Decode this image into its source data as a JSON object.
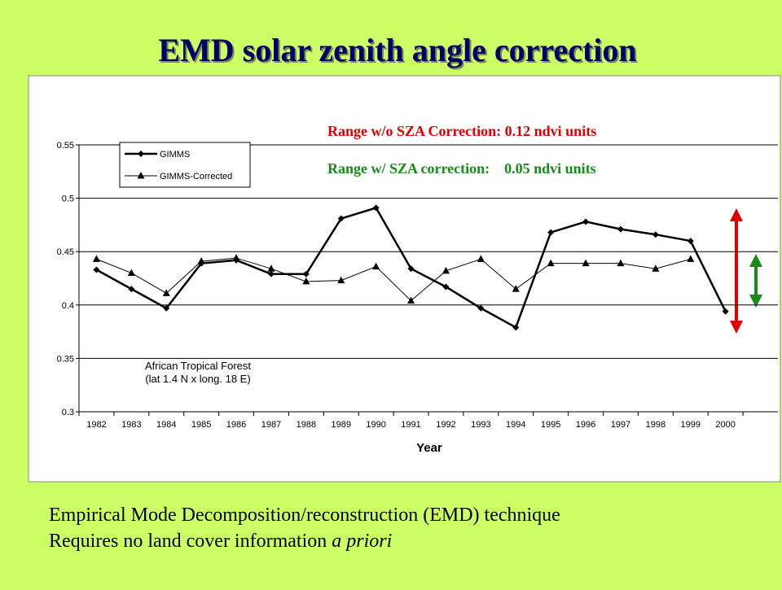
{
  "chart_data": {
    "type": "line",
    "title": "EMD solar zenith angle correction",
    "annotations": [
      "Range w/o SZA Correction: 0.12 ndvi units",
      "Range w/ SZA correction:    0.05 ndvi units"
    ],
    "plot_note": [
      "African Tropical Forest",
      "(lat 1.4 N x long. 18 E)"
    ],
    "x_label": "Year",
    "categories": [
      "1982",
      "1983",
      "1984",
      "1985",
      "1986",
      "1987",
      "1988",
      "1989",
      "1990",
      "1991",
      "1992",
      "1993",
      "1994",
      "1995",
      "1996",
      "1997",
      "1998",
      "1999",
      "2000",
      null
    ],
    "series": [
      {
        "name": "GIMMS",
        "color": "#000000",
        "marker": "diamond",
        "line_width": 2.5,
        "values": [
          0.433,
          0.415,
          0.397,
          0.439,
          0.442,
          0.429,
          0.429,
          0.481,
          0.491,
          0.434,
          0.417,
          0.397,
          0.379,
          0.468,
          0.478,
          0.471,
          0.466,
          0.46,
          0.394,
          null
        ]
      },
      {
        "name": "GIMMS-Corrected",
        "color": "#000000",
        "marker": "triangle",
        "line_width": 1,
        "values": [
          0.443,
          0.43,
          0.411,
          0.441,
          0.444,
          0.434,
          0.422,
          0.423,
          0.436,
          0.404,
          0.432,
          0.443,
          0.415,
          0.439,
          0.439,
          0.439,
          0.434,
          0.443,
          null,
          null
        ]
      }
    ],
    "ylim": [
      0.3,
      0.55
    ],
    "yticks": [
      0.3,
      0.35,
      0.4,
      0.45,
      0.5,
      0.55
    ],
    "grid": true
  },
  "footer": {
    "line1": "Empirical Mode Decomposition/reconstruction (EMD) technique",
    "line2": {
      "text": "Requires no land cover information ",
      "emphasis": "a priori"
    }
  }
}
